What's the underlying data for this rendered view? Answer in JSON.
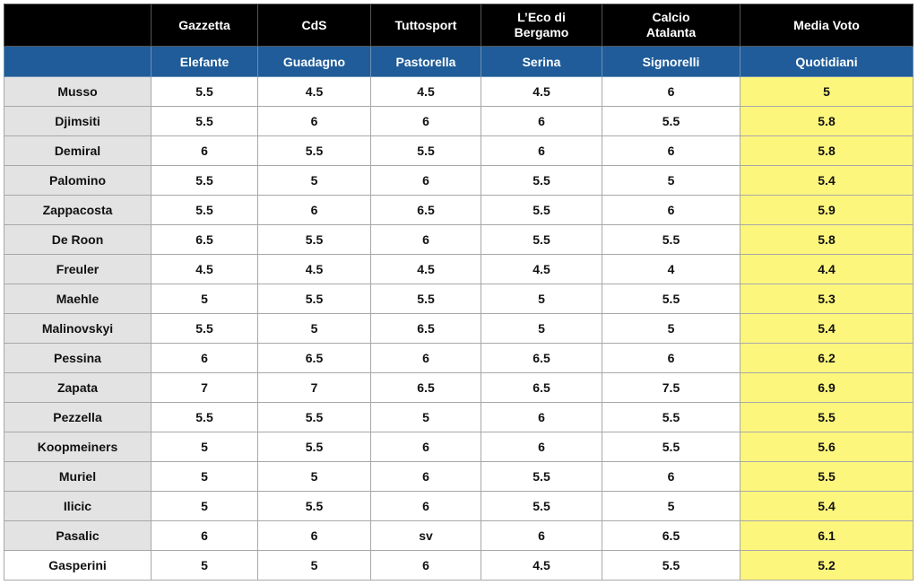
{
  "table": {
    "columns": [
      "Gazzetta",
      "CdS",
      "Tuttosport",
      "L’Eco di Bergamo",
      "Calcio Atalanta",
      "Media Voto"
    ],
    "subheader": [
      "Elefante",
      "Guadagno",
      "Pastorella",
      "Serina",
      "Signorelli",
      "Quotidiani"
    ],
    "rows": [
      [
        "Musso",
        5.5,
        4.5,
        4.5,
        4.5,
        6,
        5
      ],
      [
        "Djimsiti",
        5.5,
        6,
        6,
        6,
        5.5,
        5.8
      ],
      [
        "Demiral",
        6,
        5.5,
        5.5,
        6,
        6,
        5.8
      ],
      [
        "Palomino",
        5.5,
        5,
        6,
        5.5,
        5,
        5.4
      ],
      [
        "Zappacosta",
        5.5,
        6,
        6.5,
        5.5,
        6,
        5.9
      ],
      [
        "De Roon",
        6.5,
        5.5,
        6,
        5.5,
        5.5,
        5.8
      ],
      [
        "Freuler",
        4.5,
        4.5,
        4.5,
        4.5,
        4,
        4.4
      ],
      [
        "Maehle",
        5,
        5.5,
        5.5,
        5,
        5.5,
        5.3
      ],
      [
        "Malinovskyi",
        5.5,
        5,
        6.5,
        5,
        5,
        5.4
      ],
      [
        "Pessina",
        6,
        6.5,
        6,
        6.5,
        6,
        6.2
      ],
      [
        "Zapata",
        7,
        7,
        6.5,
        6.5,
        7.5,
        6.9
      ],
      [
        "Pezzella",
        5.5,
        5.5,
        5,
        6,
        5.5,
        5.5
      ],
      [
        "Koopmeiners",
        5,
        5.5,
        6,
        6,
        5.5,
        5.6
      ],
      [
        "Muriel",
        5,
        5,
        6,
        5.5,
        6,
        5.5
      ],
      [
        "Ilicic",
        5,
        5.5,
        6,
        5.5,
        5,
        5.4
      ],
      [
        "Pasalic",
        6,
        6,
        "sv",
        6,
        6.5,
        6.1
      ],
      [
        "Gasperini",
        5,
        5,
        6,
        4.5,
        5.5,
        5.2
      ]
    ]
  }
}
